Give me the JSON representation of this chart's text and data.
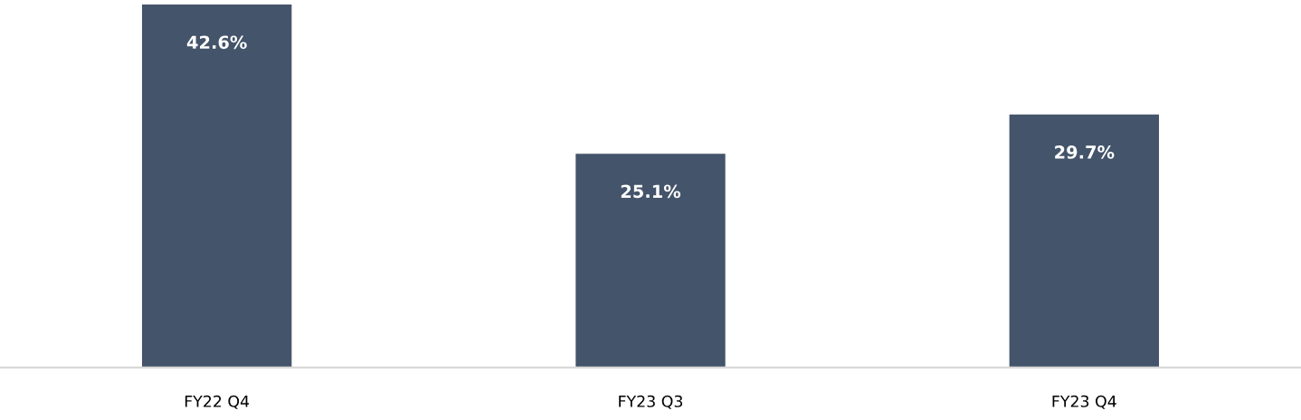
{
  "chart_data": {
    "type": "bar",
    "categories": [
      "FY22 Q4",
      "FY23 Q3",
      "FY23 Q4"
    ],
    "values": [
      42.6,
      25.1,
      29.7
    ],
    "color": "#44546a",
    "data_labels": true,
    "value_labels": [
      "42.6%",
      "25.1%",
      "29.7%"
    ],
    "grid": false,
    "legend": false
  }
}
